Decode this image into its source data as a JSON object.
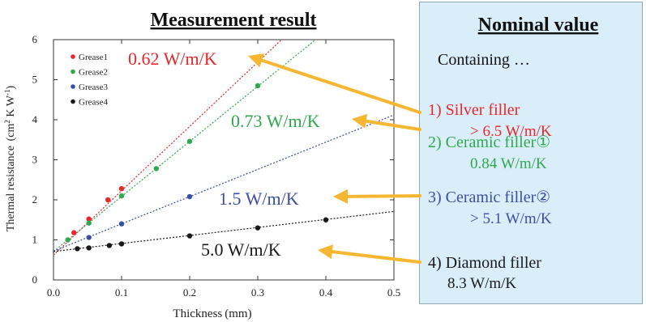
{
  "chart_data": {
    "type": "scatter",
    "title": "Measurement result",
    "xlabel": "Thickness (mm)",
    "ylabel_main": "Thermal resistance  (cm",
    "ylabel_sup1": "2",
    "ylabel_mid": " K W",
    "ylabel_sup2": "-1",
    "ylabel_end": ")",
    "xlim": [
      0.0,
      0.5
    ],
    "ylim": [
      0,
      6
    ],
    "xticks": [
      "0.0",
      "0.1",
      "0.2",
      "0.3",
      "0.4",
      "0.5"
    ],
    "yticks": [
      "0",
      "1",
      "2",
      "3",
      "4",
      "5",
      "6"
    ],
    "grid": false,
    "legend_position": "top-left",
    "series": [
      {
        "name": "Grease1",
        "color": "#e8262b",
        "points": [
          [
            0.03,
            1.18
          ],
          [
            0.052,
            1.52
          ],
          [
            0.08,
            2.0
          ],
          [
            0.1,
            2.28
          ]
        ],
        "fit": [
          [
            0.0,
            0.62
          ],
          [
            0.5,
            8.65
          ]
        ]
      },
      {
        "name": "Grease2",
        "color": "#2fa84f",
        "points": [
          [
            0.021,
            1.0
          ],
          [
            0.052,
            1.42
          ],
          [
            0.1,
            2.1
          ],
          [
            0.151,
            2.78
          ],
          [
            0.2,
            3.46
          ],
          [
            0.3,
            4.85
          ]
        ],
        "fit": [
          [
            0.0,
            0.71
          ],
          [
            0.5,
            7.58
          ]
        ]
      },
      {
        "name": "Grease3",
        "color": "#3c4ea3",
        "points": [
          [
            0.052,
            1.06
          ],
          [
            0.1,
            1.4
          ],
          [
            0.2,
            2.08
          ]
        ],
        "fit": [
          [
            0.0,
            0.72
          ],
          [
            0.5,
            4.12
          ]
        ]
      },
      {
        "name": "Grease4",
        "color": "#1a1a1a",
        "points": [
          [
            0.035,
            0.78
          ],
          [
            0.052,
            0.8
          ],
          [
            0.082,
            0.86
          ],
          [
            0.1,
            0.9
          ],
          [
            0.2,
            1.1
          ],
          [
            0.3,
            1.3
          ],
          [
            0.4,
            1.5
          ]
        ],
        "fit": [
          [
            0.0,
            0.71
          ],
          [
            0.5,
            1.71
          ]
        ]
      }
    ],
    "annotations": [
      {
        "text": "0.62 W/m/K",
        "color": "#e8262b"
      },
      {
        "text": "0.73 W/m/K",
        "color": "#2fa84f"
      },
      {
        "text": "1.5 W/m/K",
        "color": "#3c4ea3"
      },
      {
        "text": "5.0 W/m/K",
        "color": "#1a1a1a"
      }
    ]
  },
  "nominal": {
    "title": "Nominal value",
    "subtitle": "Containing …",
    "items": [
      {
        "line1": "1) Silver filler",
        "line2": "> 6.5 W/m/K",
        "color": "#e8262b"
      },
      {
        "line1": "2) Ceramic filler①",
        "line2": "0.84 W/m/K",
        "color": "#2fa84f"
      },
      {
        "line1": "3) Ceramic filler②",
        "line2": "> 5.1 W/m/K",
        "color": "#3c4ea3"
      },
      {
        "line1": "4) Diamond filler",
        "line2": "8.3 W/m/K",
        "color": "#1a1a1a"
      }
    ]
  },
  "colors": {
    "arrow": "#f5b731",
    "box_bg": "#d9eef8",
    "box_border": "#8fa6b3"
  }
}
